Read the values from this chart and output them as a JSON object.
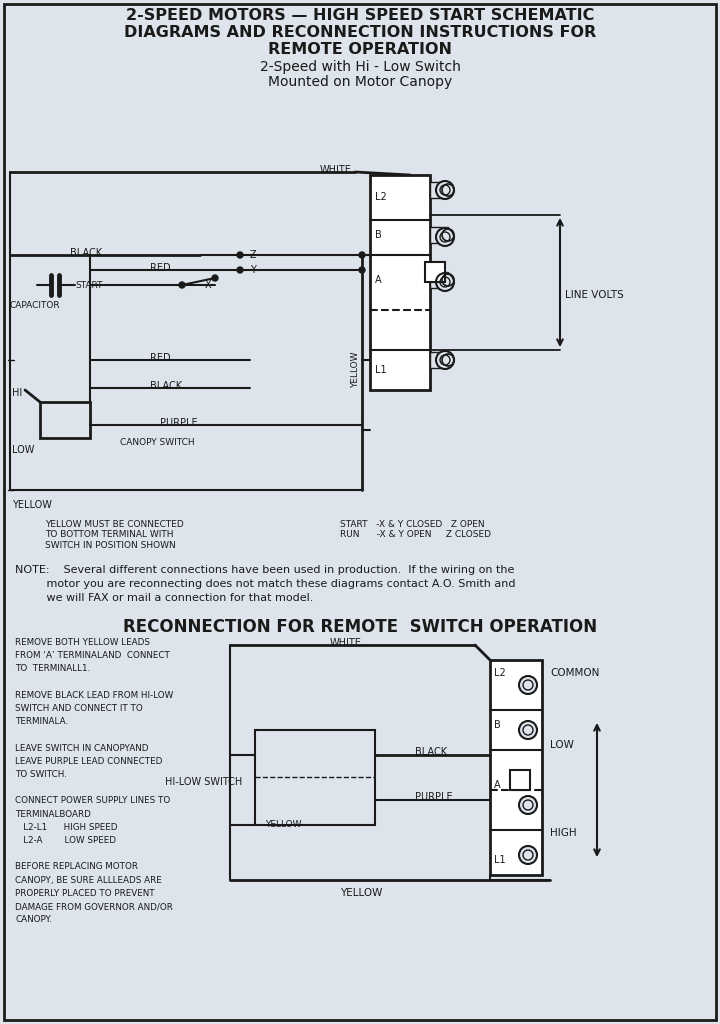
{
  "bg_color": "#dde4eb",
  "title_line1": "2-SPEED MOTORS — HIGH SPEED START SCHEMATIC",
  "title_line2": "DIAGRAMS AND RECONNECTION INSTRUCTIONS FOR",
  "title_line3": "REMOTE OPERATION",
  "subtitle_line1": "2-Speed with Hi - Low Switch",
  "subtitle_line2": "Mounted on Motor Canopy",
  "note_text": "NOTE:    Several different connections have been used in production.  If the wiring on the\n         motor you are reconnecting does not match these diagrams contact A.O. Smith and\n         we will FAX or mail a connection for that model.",
  "reconnect_title": "RECONNECTION FOR REMOTE  SWITCH OPERATION",
  "left_notes_top": "YELLOW MUST BE CONNECTED\nTO BOTTOM TERMINAL WITH\nSWITCH IN POSITION SHOWN",
  "right_notes_top": "START   -X & Y CLOSED   Z OPEN\nRUN      -X & Y OPEN     Z CLOSED",
  "left_instructions": "REMOVE BOTH YELLOW LEADS\nFROM ‘A’ TERMINALAND  CONNECT\nTO  TERMINALL1.\n\nREMOVE BLACK LEAD FROM HI-LOW\nSWITCH AND CONNECT IT TO\nTERMINALA.\n\nLEAVE SWITCH IN CANOPYAND\nLEAVE PURPLE LEAD CONNECTED\nTO SWITCH.\n\nCONNECT POWER SUPPLY LINES TO\nTERMINALBOARD\n   L2-L1      HIGH SPEED\n   L2-A        LOW SPEED\n\nBEFORE REPLACING MOTOR\nCANOPY, BE SURE ALLLEADS ARE\nPROPERLY PLACED TO PREVENT\nDAMAGE FROM GOVERNOR AND/OR\nCANOPY.",
  "line_color": "#1a1a1a",
  "text_color": "#1a1a1a"
}
